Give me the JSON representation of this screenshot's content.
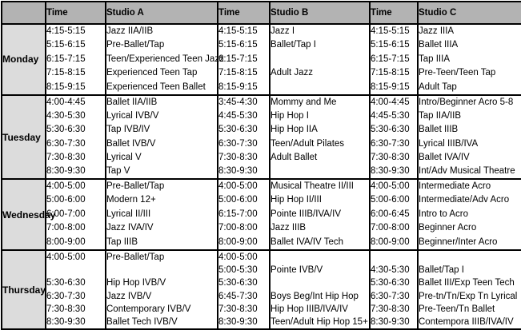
{
  "colors": {
    "header_bg": "#b3b3b3",
    "day_bg": "#dcdcdc",
    "border": "#000000",
    "cell_bg": "#ffffff",
    "text": "#000000"
  },
  "header": {
    "cells": [
      "",
      "Time",
      "Studio A",
      "Time",
      "Studio B",
      "Time",
      "Studio C"
    ]
  },
  "days": [
    {
      "day": "Monday",
      "time_a": [
        "4:15-5:15",
        "5:15-6:15",
        "6:15-7:15",
        "7:15-8:15",
        "8:15-9:15"
      ],
      "studio_a": [
        "Jazz IIA/IIB",
        "Pre-Ballet/Tap",
        "Teen/Experienced Teen Jazz",
        "Experienced Teen Tap",
        "Experienced Teen Ballet"
      ],
      "time_b": [
        "4:15-5:15",
        "5:15-6:15",
        "6:15-7:15",
        "7:15-8:15",
        "8:15-9:15"
      ],
      "studio_b": [
        "Jazz I",
        "Ballet/Tap I",
        "",
        "Adult Jazz",
        ""
      ],
      "time_c": [
        "4:15-5:15",
        "5:15-6:15",
        "6:15-7:15",
        "7:15-8:15",
        "8:15-9:15"
      ],
      "studio_c": [
        "Jazz IIIA",
        "Ballet IIIA",
        "Tap IIIA",
        "Pre-Teen/Teen Tap",
        "Adult Tap"
      ]
    },
    {
      "day": "Tuesday",
      "time_a": [
        "4:00-4:45",
        "4:30-5:30",
        "5:30-6:30",
        "6:30-7:30",
        "7:30-8:30",
        "8:30-9:30"
      ],
      "studio_a": [
        "Ballet IIA/IIB",
        "Lyrical IVB/V",
        "Tap IVB/IV",
        "Ballet IVB/V",
        "Lyrical V",
        "Tap V"
      ],
      "time_b": [
        "3:45-4:30",
        "4:45-5:30",
        "5:30-6:30",
        "6:30-7:30",
        "7:30-8:30",
        "8:30-9:30"
      ],
      "studio_b": [
        "Mommy and Me",
        "Hip Hop I",
        "Hip Hop IIA",
        "Teen/Adult Pilates",
        "Adult Ballet",
        ""
      ],
      "time_c": [
        "4:00-4:45",
        "4:45-5:30",
        "5:30-6:30",
        "6:30-7:30",
        "7:30-8:30",
        "8:30-9:30"
      ],
      "studio_c": [
        "Intro/Beginner Acro 5-8",
        "Tap IIA/IIB",
        "Ballet IIIB",
        "Lyrical IIIB/IVA",
        "Ballet IVA/IV",
        "Int/Adv Musical Theatre"
      ]
    },
    {
      "day": "Wednesday",
      "time_a": [
        "4:00-5:00",
        "5:00-6:00",
        "6:00-7:00",
        "7:00-8:00",
        "8:00-9:00"
      ],
      "studio_a": [
        "Pre-Ballet/Tap",
        "Modern 12+",
        "Lyrical II/III",
        "Jazz IVA/IV",
        "Tap IIIB"
      ],
      "time_b": [
        "4:00-5:00",
        "5:00-6:00",
        "6:15-7:00",
        "7:00-8:00",
        "8:00-9:00"
      ],
      "studio_b": [
        "Musical Theatre II/III",
        "Hip Hop II/III",
        "Pointe IIIB/IVA/IV",
        "Jazz IIIB",
        "Ballet IVA/IV Tech"
      ],
      "time_c": [
        "4:00-5:00",
        "5:00-6:00",
        "6:00-6:45",
        "7:00-8:00",
        "8:00-9:00"
      ],
      "studio_c": [
        "Intermediate Acro",
        "Intermediate/Adv Acro",
        "Intro to Acro",
        "Beginner Acro",
        "Beginner/Inter Acro"
      ]
    },
    {
      "day": "Thursday",
      "time_a": [
        "4:00-5:00",
        "",
        "5:30-6:30",
        "6:30-7:30",
        "7:30-8:30",
        "8:30-9:30"
      ],
      "studio_a": [
        "Pre-Ballet/Tap",
        "",
        "Hip Hop IVB/V",
        "Jazz IVB/V",
        "Contemporary IVB/V",
        "Ballet Tech IVB/V"
      ],
      "time_b": [
        "4:00-5:00",
        "5:00-5:30",
        "5:30-6:30",
        "6:45-7:30",
        "7:30-8:30",
        "8:30-9:30"
      ],
      "studio_b": [
        "",
        "Pointe IVB/V",
        "",
        "Boys Beg/Int Hip Hop",
        "Hip Hop IIIB/IVA/IV",
        "Teen/Adult Hip Hop 15+"
      ],
      "time_c": [
        "",
        "4:30-5:30",
        "5:30-6:30",
        "6:30-7:30",
        "7:30-8:30",
        "8:30-9:30"
      ],
      "studio_c": [
        "",
        "Ballet/Tap I",
        "Ballet III/Exp Teen Tech",
        "Pre-tn/Tn/Exp Tn Lyrical",
        "Pre-Teen/Tn Ballet",
        "Contempora IIIB/IVA/IV"
      ]
    }
  ]
}
